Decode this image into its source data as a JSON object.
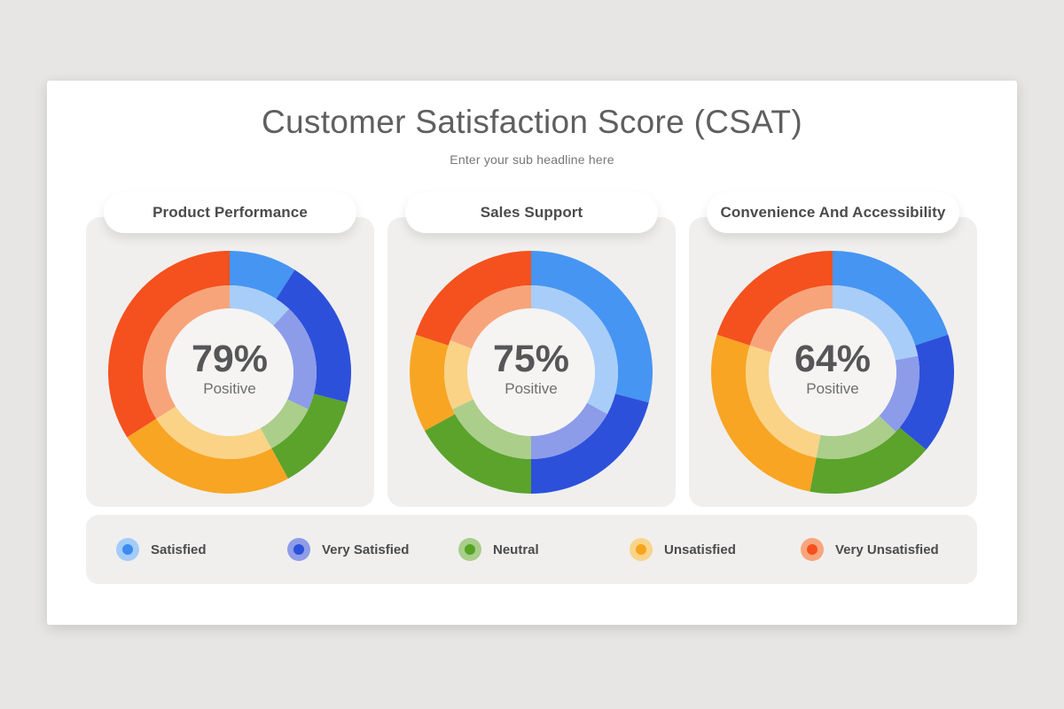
{
  "header": {
    "title": "Customer Satisfaction Score (CSAT)",
    "subtitle": "Enter your sub headline here"
  },
  "colors": {
    "page_background": "#e7e6e5",
    "slide_background": "#ffffff",
    "card_background": "#f0efee",
    "hole_background": "#f5f4f3",
    "title_text": "#5f5f61",
    "subtitle_text": "#767676",
    "value_text": "#565659",
    "label_text": "#6e6e6e"
  },
  "palette": {
    "ring_outer": [
      "#4695f2",
      "#2d50da",
      "#5ba32b",
      "#f8a524",
      "#f4511e"
    ],
    "ring_inner": [
      "#a9cdf9",
      "#8c9ce9",
      "#abce8b",
      "#fad387",
      "#f8a47b"
    ],
    "hole": "#f5f4f3"
  },
  "legend": {
    "position": "bottom",
    "items": [
      {
        "label": "Satisfied",
        "halo": "#a4ccf8",
        "dot": "#3d8bf0"
      },
      {
        "label": "Very Satisfied",
        "halo": "#8f9ce8",
        "dot": "#2b50da"
      },
      {
        "label": "Neutral",
        "halo": "#a9ce89",
        "dot": "#57a326"
      },
      {
        "label": "Unsatisfied",
        "halo": "#fad489",
        "dot": "#f7a41d"
      },
      {
        "label": "Very Unsatisfied",
        "halo": "#f8a57d",
        "dot": "#f4511e"
      }
    ]
  },
  "chart_data": [
    {
      "type": "pie",
      "variant": "double-ring donut",
      "title": "Product Performance",
      "center_value": "79%",
      "center_label": "Positive",
      "categories": [
        "Satisfied",
        "Very Satisfied",
        "Neutral",
        "Unsatisfied",
        "Very Unsatisfied"
      ],
      "series": [
        {
          "name": "outer ring",
          "values": [
            9,
            20,
            13,
            24,
            34
          ]
        },
        {
          "name": "inner ring",
          "values": [
            12,
            20,
            10,
            24,
            34
          ]
        }
      ],
      "unit": "percent",
      "start_angle_deg": 0,
      "direction": "clockwise"
    },
    {
      "type": "pie",
      "variant": "double-ring donut",
      "title": "Sales Support",
      "center_value": "75%",
      "center_label": "Positive",
      "categories": [
        "Satisfied",
        "Very Satisfied",
        "Neutral",
        "Unsatisfied",
        "Very Unsatisfied"
      ],
      "series": [
        {
          "name": "outer ring",
          "values": [
            29,
            21,
            17,
            13,
            20
          ]
        },
        {
          "name": "inner ring",
          "values": [
            33,
            17,
            18,
            13,
            19
          ]
        }
      ],
      "unit": "percent",
      "start_angle_deg": 0,
      "direction": "clockwise"
    },
    {
      "type": "pie",
      "variant": "double-ring donut",
      "title": "Convenience And Accessibility",
      "center_value": "64%",
      "center_label": "Positive",
      "categories": [
        "Satisfied",
        "Very Satisfied",
        "Neutral",
        "Unsatisfied",
        "Very Unsatisfied"
      ],
      "series": [
        {
          "name": "outer ring",
          "values": [
            20,
            16,
            17,
            27,
            20
          ]
        },
        {
          "name": "inner ring",
          "values": [
            22,
            15,
            16,
            27,
            20
          ]
        }
      ],
      "unit": "percent",
      "start_angle_deg": 0,
      "direction": "clockwise"
    }
  ]
}
